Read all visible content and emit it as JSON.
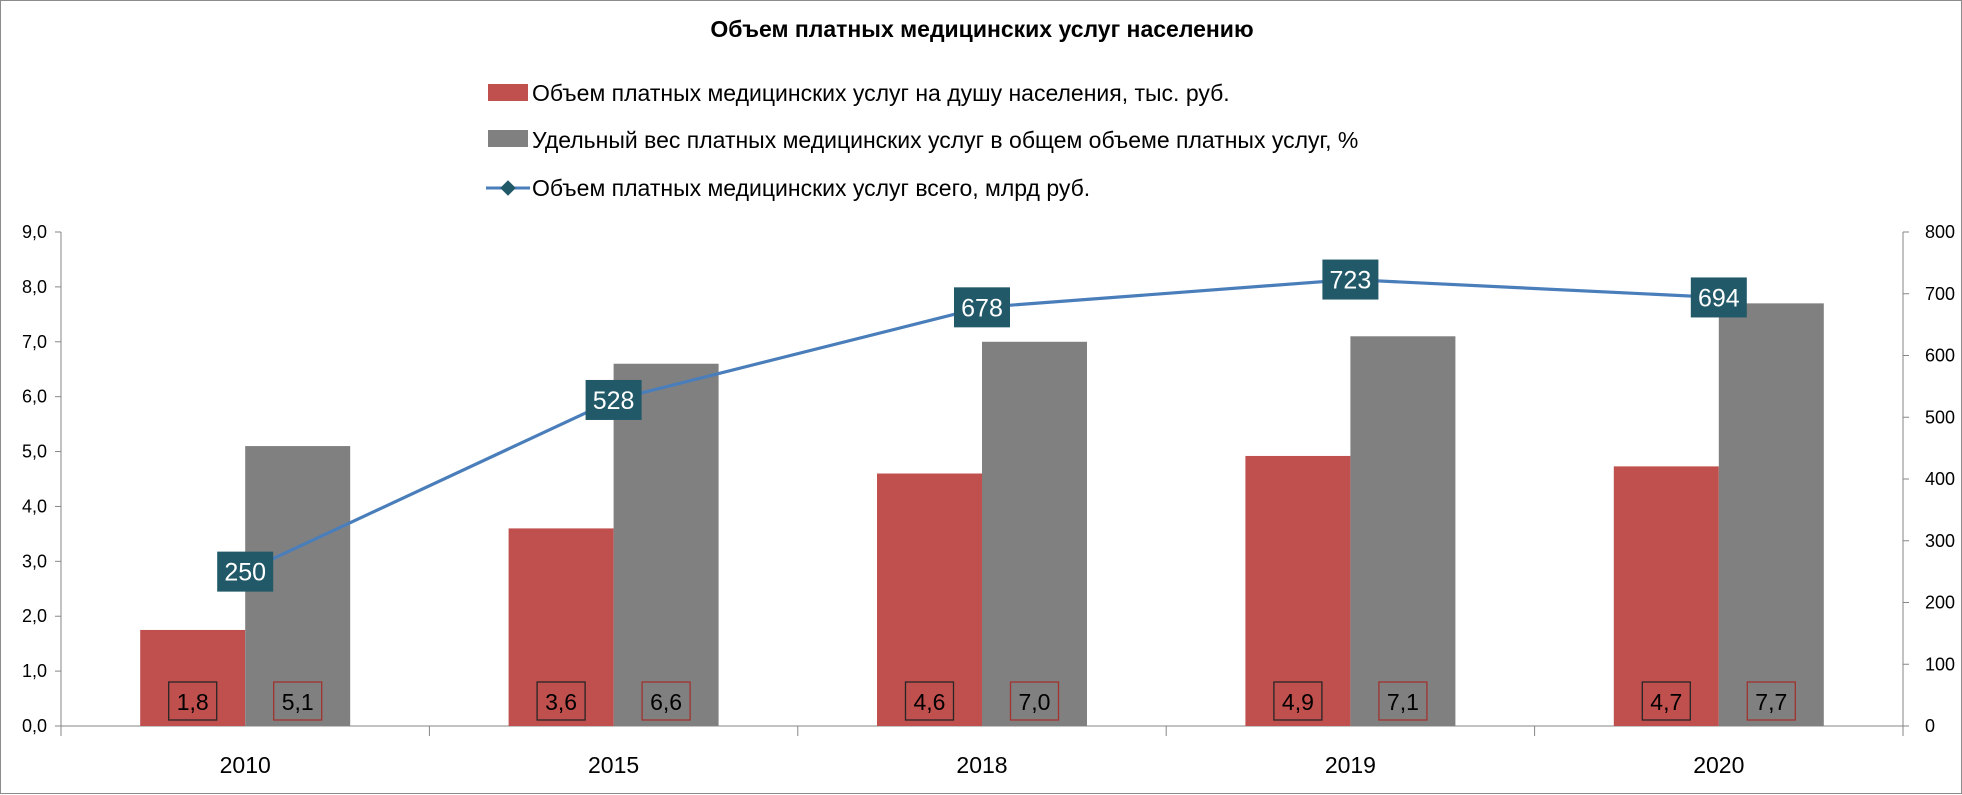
{
  "chart_data": {
    "type": "bar",
    "title": "Объем платных медицинских услуг населению",
    "categories": [
      "2010",
      "2015",
      "2018",
      "2019",
      "2020"
    ],
    "series": [
      {
        "name": "Объем платных медицинских услуг на душу населения, тыс. руб.",
        "kind": "bar",
        "axis": "left",
        "color": "#c0504d",
        "values": [
          1.75,
          3.6,
          4.6,
          4.92,
          4.73
        ],
        "labels": [
          "1,8",
          "3,6",
          "4,6",
          "4,9",
          "4,7"
        ]
      },
      {
        "name": "Удельный вес платных медицинских услуг в общем объеме платных услуг, %",
        "kind": "bar",
        "axis": "left",
        "color": "#808080",
        "values": [
          5.1,
          6.6,
          7.0,
          7.1,
          7.7
        ],
        "labels": [
          "5,1",
          "6,6",
          "7,0",
          "7,1",
          "7,7"
        ]
      },
      {
        "name": "Объем платных медицинских услуг всего, млрд руб.",
        "kind": "line",
        "axis": "right",
        "color": "#4a7ebb",
        "label_bg": "#215968",
        "values": [
          250,
          528,
          678,
          723,
          694
        ],
        "labels": [
          "250",
          "528",
          "678",
          "723",
          "694"
        ]
      }
    ],
    "y_left": {
      "min": 0,
      "max": 9,
      "step": 1,
      "ticks": [
        "0,0",
        "1,0",
        "2,0",
        "3,0",
        "4,0",
        "5,0",
        "6,0",
        "7,0",
        "8,0",
        "9,0"
      ]
    },
    "y_right": {
      "min": 0,
      "max": 800,
      "step": 100,
      "ticks": [
        "0",
        "100",
        "200",
        "300",
        "400",
        "500",
        "600",
        "700",
        "800"
      ]
    },
    "legend_position": "top",
    "grid": false
  }
}
